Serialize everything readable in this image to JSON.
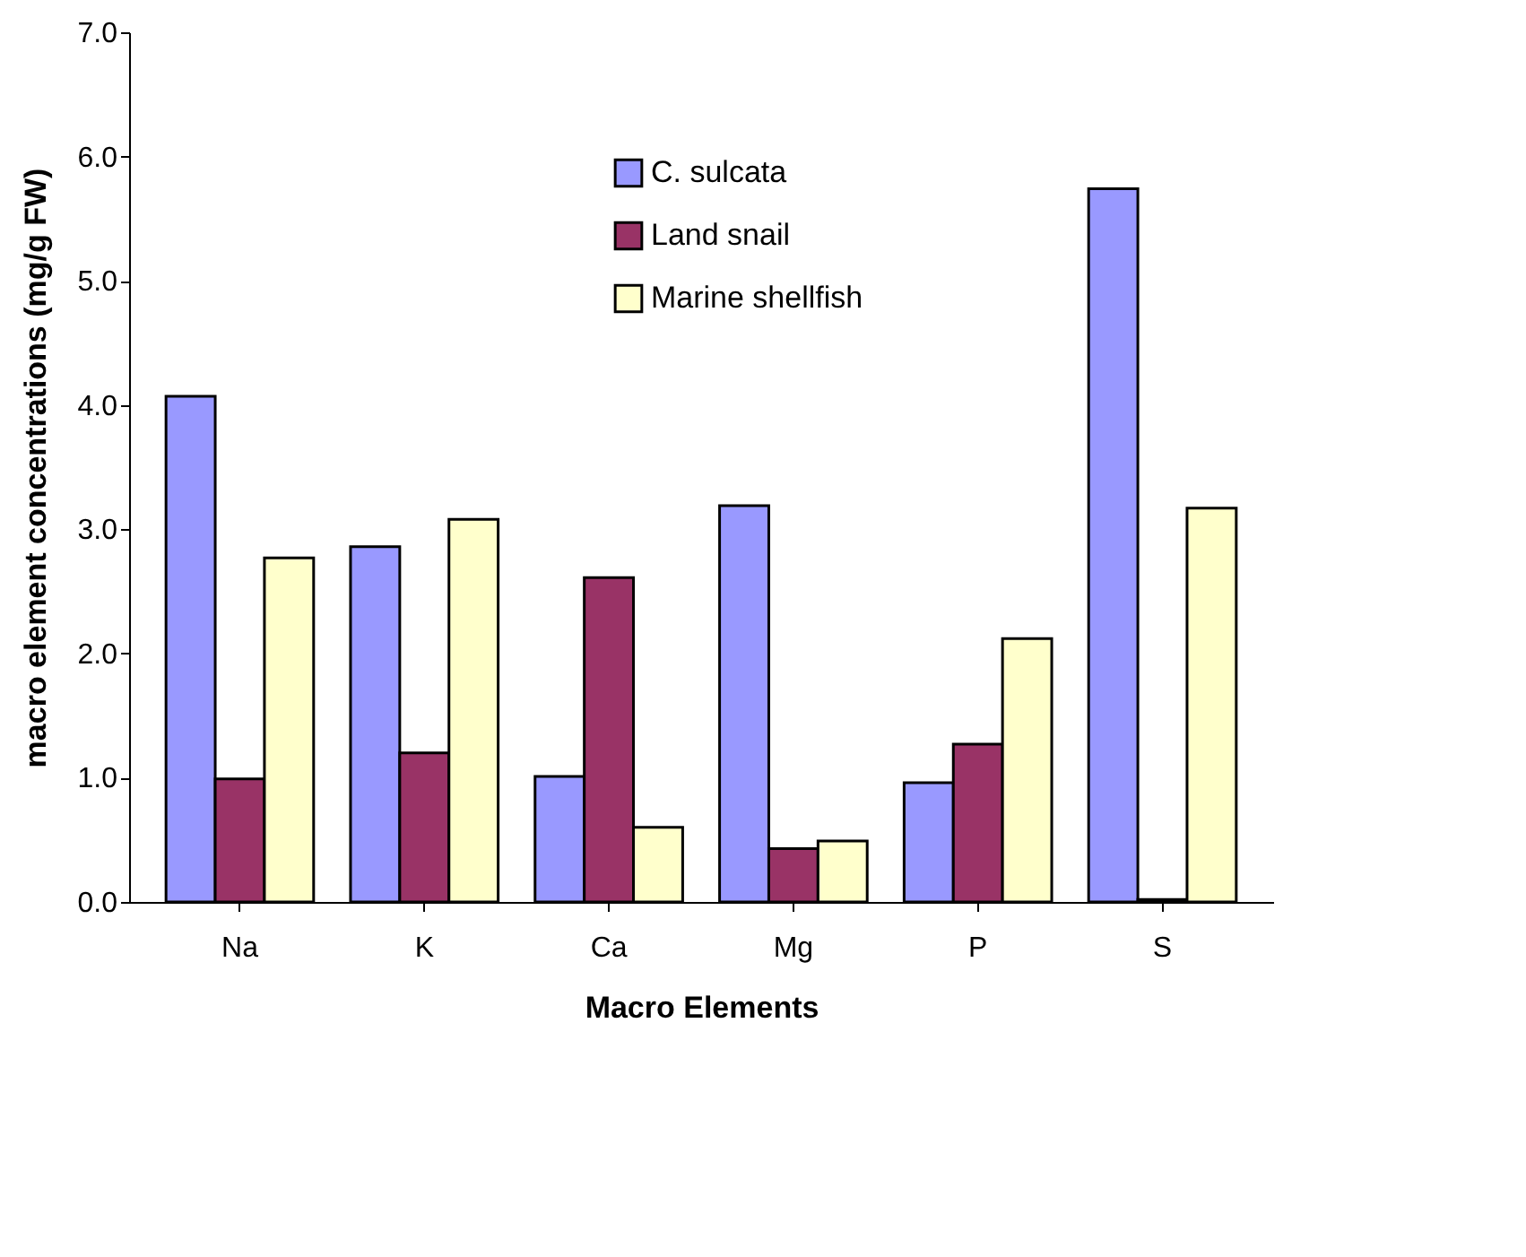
{
  "chart_data": {
    "type": "bar",
    "xlabel": "Macro Elements",
    "ylabel": "macro element concentrations (mg/g FW)",
    "categories": [
      "Na",
      "K",
      "Ca",
      "Mg",
      "P",
      "S"
    ],
    "series": [
      {
        "name": "C. sulcata",
        "color": "#9999ff",
        "values": [
          4.07,
          2.86,
          1.01,
          3.19,
          0.96,
          5.74
        ]
      },
      {
        "name": "Land snail",
        "color": "#993366",
        "values": [
          0.99,
          1.2,
          2.61,
          0.43,
          1.27,
          0.02
        ]
      },
      {
        "name": "Marine shellfish",
        "color": "#ffffcc",
        "values": [
          2.77,
          3.08,
          0.6,
          0.49,
          2.12,
          3.17
        ]
      }
    ],
    "ylim": [
      0,
      7
    ],
    "yticks": [
      {
        "value": 0,
        "label": "0.0"
      },
      {
        "value": 1,
        "label": "1.0"
      },
      {
        "value": 2,
        "label": "2.0"
      },
      {
        "value": 3,
        "label": "3.0"
      },
      {
        "value": 4,
        "label": "4.0"
      },
      {
        "value": 5,
        "label": "5.0"
      },
      {
        "value": 6,
        "label": "6.0"
      },
      {
        "value": 7,
        "label": "7.0"
      }
    ],
    "grid": false,
    "legend": "top"
  }
}
